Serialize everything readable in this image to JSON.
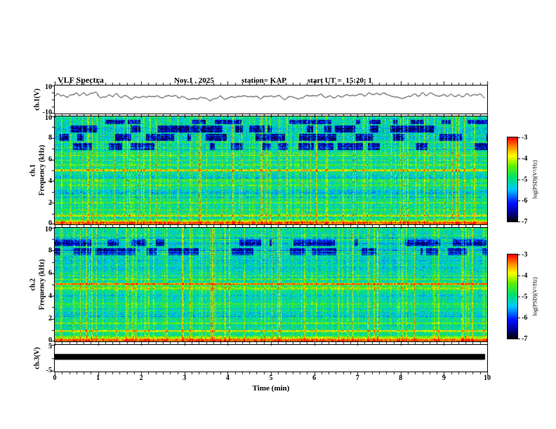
{
  "header": {
    "title": "VLF Spectra",
    "date": "Nov.1 , 2025",
    "station": "station= KAP",
    "start_ut": "start UT =  15:20: 1"
  },
  "x_axis": {
    "label": "Time (min)",
    "tick_labels": [
      "0",
      "1",
      "2",
      "3",
      "4",
      "5",
      "6",
      "7",
      "8",
      "9",
      "10"
    ],
    "min": 0,
    "max": 10,
    "minors_per_major": 6
  },
  "panels": {
    "wave1": {
      "ylabel": "ch.1(V)",
      "ymin": -10,
      "ymax": 10,
      "yticks": [
        {
          "v": 10,
          "label": "10"
        },
        {
          "v": -10,
          "label": "-10"
        }
      ],
      "yminor": [
        -5,
        0,
        5
      ]
    },
    "spec1": {
      "ylabel_channel": "ch.1",
      "ylabel_axis": "Frequency (kHz)",
      "ymin": 0,
      "ymax": 10,
      "yticks": [
        {
          "v": 10,
          "label": "10"
        },
        {
          "v": 8,
          "label": "8"
        },
        {
          "v": 6,
          "label": "6"
        },
        {
          "v": 4,
          "label": "4"
        },
        {
          "v": 2,
          "label": "2"
        },
        {
          "v": 0,
          "label": "0"
        }
      ],
      "yminor": [
        1,
        3,
        5,
        7,
        9
      ]
    },
    "spec2": {
      "ylabel_channel": "ch.2",
      "ylabel_axis": "Frequency (kHz)",
      "ymin": 0,
      "ymax": 10,
      "yticks": [
        {
          "v": 10,
          "label": "10"
        },
        {
          "v": 8,
          "label": "8"
        },
        {
          "v": 6,
          "label": "6"
        },
        {
          "v": 4,
          "label": "4"
        },
        {
          "v": 2,
          "label": "2"
        },
        {
          "v": 0,
          "label": "0"
        }
      ],
      "yminor": [
        1,
        3,
        5,
        7,
        9
      ]
    },
    "wave3": {
      "ylabel": "ch.3(V)",
      "ymin": -5,
      "ymax": 5,
      "yticks": [
        {
          "v": 5,
          "label": "5"
        },
        {
          "v": -5,
          "label": "-5"
        }
      ],
      "yminor": [
        0
      ]
    }
  },
  "colorbar": {
    "label": "log(PSD)(V²/Hz)",
    "tick_labels": [
      "-3",
      "-4",
      "-5",
      "-6",
      "-7"
    ],
    "z_min": -7,
    "z_max": -3,
    "stops": [
      {
        "t": 0.0,
        "c": "#000006"
      },
      {
        "t": 0.1,
        "c": "#000090"
      },
      {
        "t": 0.22,
        "c": "#0010ff"
      },
      {
        "t": 0.38,
        "c": "#00c8ff"
      },
      {
        "t": 0.52,
        "c": "#00e070"
      },
      {
        "t": 0.66,
        "c": "#60f000"
      },
      {
        "t": 0.78,
        "c": "#ffff00"
      },
      {
        "t": 0.9,
        "c": "#ff8000"
      },
      {
        "t": 1.0,
        "c": "#ff0000"
      }
    ]
  },
  "chart_data": [
    {
      "panel": "wave1",
      "type": "line",
      "title": "ch.1(V) time series",
      "x_range": [
        0,
        10
      ],
      "y_range": [
        -10,
        10
      ],
      "summary": "continuous noisy black voltage trace, mean near +2.4 V, excursions roughly -1 to +6 V",
      "gen": {
        "seed": 13,
        "mean": 2.4,
        "amp": 1.15,
        "harmonics": 70,
        "jitter": 0.6
      }
    },
    {
      "panel": "spec1",
      "type": "heatmap",
      "title": "ch.1 VLF spectrogram",
      "x_range": [
        0,
        10
      ],
      "y_range_khz": [
        0,
        10
      ],
      "z_range": [
        -7,
        -3
      ],
      "summary": "green/cyan background near -5 log(PSD); red band below 0.5 kHz; orange line near 5 kHz; dense yellow sferic streaks; dark blue quiet blocks between 7 and 9.5 kHz",
      "gen": {
        "seed": 21,
        "base": -5.1,
        "noise": 0.5,
        "bands": [
          {
            "f": 0.1,
            "w": 0.45,
            "dv": 2.0
          },
          {
            "f": 0.8,
            "w": 0.15,
            "dv": 1.2
          },
          {
            "f": 1.3,
            "w": 0.2,
            "dv": 0.5
          },
          {
            "f": 2.0,
            "w": 0.1,
            "dv": 0.8
          },
          {
            "f": 3.0,
            "w": 0.35,
            "dv": -0.35
          },
          {
            "f": 3.6,
            "w": 0.12,
            "dv": 0.7
          },
          {
            "f": 4.3,
            "w": 0.3,
            "dv": -0.3
          },
          {
            "f": 5.0,
            "w": 0.14,
            "dv": 1.5
          },
          {
            "f": 5.5,
            "w": 0.12,
            "dv": 0.6
          },
          {
            "f": 6.35,
            "w": 0.2,
            "dv": 0.3
          },
          {
            "f": 8.4,
            "w": 1.6,
            "dv": -0.25
          }
        ],
        "streak_density": 0.18,
        "streak_gain": 1.3,
        "patch_rows": [
          [
            6.9,
            7.55
          ],
          [
            7.7,
            8.35
          ],
          [
            8.5,
            9.15
          ],
          [
            9.3,
            9.7
          ]
        ],
        "patch_dv": -1.4
      }
    },
    {
      "panel": "spec2",
      "type": "heatmap",
      "title": "ch.2 VLF spectrogram",
      "x_range": [
        0,
        10
      ],
      "y_range_khz": [
        0,
        10
      ],
      "z_range": [
        -7,
        -3
      ],
      "summary": "green/cyan background with strong red line near 5 kHz and orange band 4.5-5 kHz; red band below 0.5 kHz; blue quiet blocks 7.5-9 kHz",
      "gen": {
        "seed": 57,
        "base": -5.05,
        "noise": 0.45,
        "bands": [
          {
            "f": 0.1,
            "w": 0.45,
            "dv": 2.0
          },
          {
            "f": 0.9,
            "w": 0.15,
            "dv": 1.0
          },
          {
            "f": 1.6,
            "w": 0.12,
            "dv": 0.6
          },
          {
            "f": 2.4,
            "w": 0.3,
            "dv": -0.3
          },
          {
            "f": 3.3,
            "w": 0.12,
            "dv": 0.5
          },
          {
            "f": 4.0,
            "w": 0.3,
            "dv": -0.25
          },
          {
            "f": 4.7,
            "w": 0.25,
            "dv": 0.9
          },
          {
            "f": 5.05,
            "w": 0.12,
            "dv": 2.2
          },
          {
            "f": 5.5,
            "w": 0.15,
            "dv": 0.7
          },
          {
            "f": 6.5,
            "w": 1.0,
            "dv": -0.2
          },
          {
            "f": 8.3,
            "w": 1.5,
            "dv": -0.3
          }
        ],
        "streak_density": 0.15,
        "streak_gain": 1.2,
        "patch_rows": [
          [
            7.6,
            8.2
          ],
          [
            8.4,
            9.0
          ]
        ],
        "patch_dv": -1.2
      }
    },
    {
      "panel": "wave3",
      "type": "band",
      "title": "ch.3(V) time series",
      "x_range": [
        0,
        10
      ],
      "y_range": [
        -5,
        5
      ],
      "band": {
        "y_top": 1.6,
        "y_bottom": -0.6
      },
      "summary": "saturated solid black band spanning the full record"
    }
  ]
}
